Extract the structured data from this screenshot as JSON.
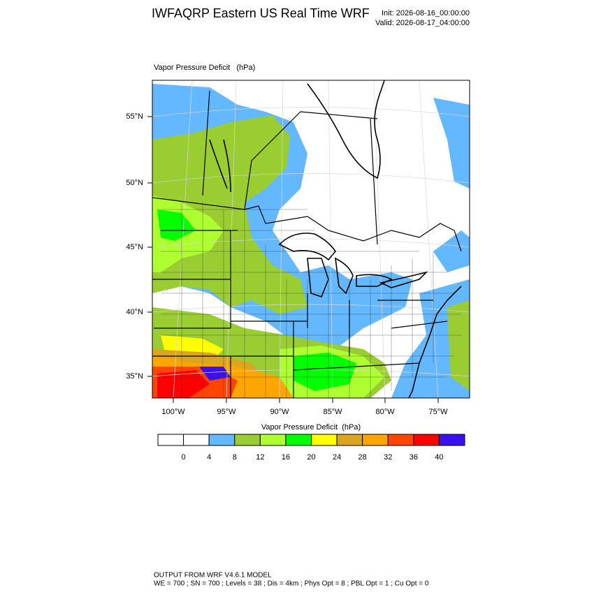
{
  "header": {
    "title": "IWFAQRP Eastern US Real Time WRF",
    "init": "Init: 2026-08-16_00:00:00",
    "valid": "Valid: 2026-08-17_04:00:00"
  },
  "map": {
    "subtitle": "Vapor Pressure Deficit   (hPa)",
    "lat_labels": [
      "55°N",
      "50°N",
      "45°N",
      "40°N",
      "35°N"
    ],
    "lon_labels": [
      "100°W",
      "95°W",
      "90°W",
      "85°W",
      "80°W",
      "75°W"
    ]
  },
  "colorbar": {
    "title": "Vapor Pressure Deficit  (hPa)",
    "colors": [
      "#ffffff",
      "#ffffff",
      "#63b8ff",
      "#9acd32",
      "#adff2f",
      "#00ff00",
      "#ffff00",
      "#daa520",
      "#ffa500",
      "#ff4500",
      "#ff0000",
      "#3a10f0"
    ],
    "labels": [
      0,
      4,
      8,
      12,
      16,
      20,
      24,
      28,
      32,
      36,
      40
    ]
  },
  "footer": {
    "line1": "OUTPUT FROM WRF V4.6.1 MODEL",
    "line2": "WE = 700 ; SN = 700 ; Levels = 38 ; Dis = 4km ; Phys Opt = 8 ; PBL Opt = 1 ; Cu Opt = 0"
  }
}
